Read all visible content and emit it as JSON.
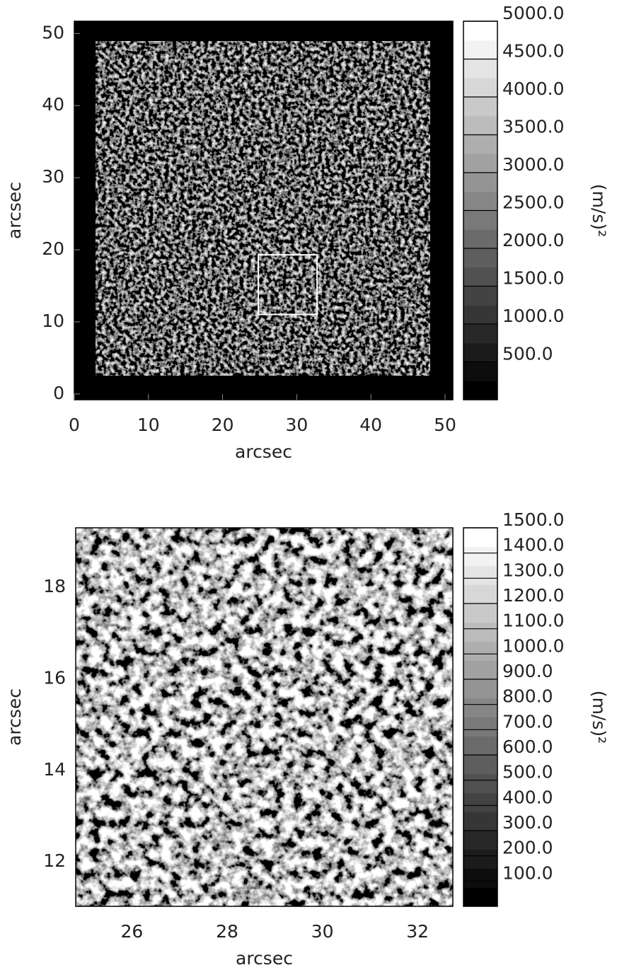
{
  "chart_data": [
    {
      "type": "image",
      "xlabel": "arcsec",
      "ylabel": "arcsec",
      "xlim": [
        0,
        51.05
      ],
      "ylim": [
        -0.8,
        51.7
      ],
      "xticks": [
        0,
        10,
        20,
        30,
        40,
        50
      ],
      "yticks": [
        0,
        10,
        20,
        30,
        40,
        50
      ],
      "inset": {
        "xlim": [
          24.82,
          32.74
        ],
        "ylim": [
          11.03,
          19.3
        ]
      },
      "colorbar": {
        "label": "(m/s)²",
        "clim": [
          0,
          5000
        ],
        "ticks": [
          {
            "value": 500,
            "label": "500.0"
          },
          {
            "value": 1000,
            "label": "1000.0"
          },
          {
            "value": 1500,
            "label": "1500.0"
          },
          {
            "value": 2000,
            "label": "2000.0"
          },
          {
            "value": 2500,
            "label": "2500.0"
          },
          {
            "value": 3000,
            "label": "3000.0"
          },
          {
            "value": 3500,
            "label": "3500.0"
          },
          {
            "value": 4000,
            "label": "4000.0"
          },
          {
            "value": 4500,
            "label": "4500.0"
          },
          {
            "value": 5000,
            "label": "5000.0"
          }
        ]
      }
    },
    {
      "type": "image",
      "xlabel": "arcsec",
      "ylabel": "arcsec",
      "xlim": [
        24.82,
        32.74
      ],
      "ylim": [
        11.03,
        19.3
      ],
      "xticks": [
        26,
        28,
        30,
        32
      ],
      "yticks": [
        12,
        14,
        16,
        18
      ],
      "colorbar": {
        "label": "(m/s)²",
        "clim": [
          0,
          1500
        ],
        "ticks": [
          {
            "value": 100,
            "label": "100.0"
          },
          {
            "value": 200,
            "label": "200.0"
          },
          {
            "value": 300,
            "label": "300.0"
          },
          {
            "value": 400,
            "label": "400.0"
          },
          {
            "value": 500,
            "label": "500.0"
          },
          {
            "value": 600,
            "label": "600.0"
          },
          {
            "value": 700,
            "label": "700.0"
          },
          {
            "value": 800,
            "label": "800.0"
          },
          {
            "value": 900,
            "label": "900.0"
          },
          {
            "value": 1000,
            "label": "1000.0"
          },
          {
            "value": 1100,
            "label": "1100.0"
          },
          {
            "value": 1200,
            "label": "1200.0"
          },
          {
            "value": 1300,
            "label": "1300.0"
          },
          {
            "value": 1400,
            "label": "1400.0"
          },
          {
            "value": 1500,
            "label": "1500.0"
          }
        ]
      }
    }
  ]
}
